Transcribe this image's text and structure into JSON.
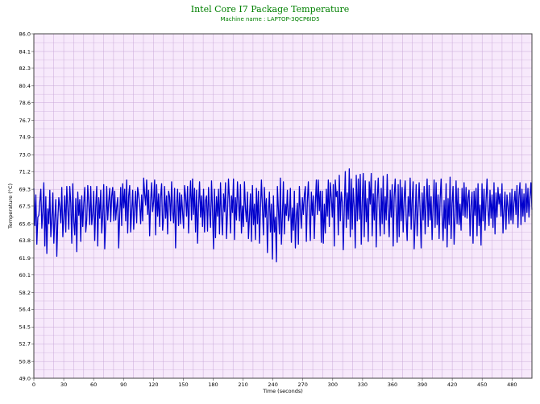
{
  "chart_data": {
    "type": "line",
    "title": "Intel Core I7 Package Temperature",
    "subtitle": "Machine name : LAPTOP-3QCP6ID5",
    "xlabel": "Time (seconds)",
    "ylabel": "Temperature (°C)",
    "xlim": [
      0,
      500
    ],
    "ylim": [
      49.0,
      86.0
    ],
    "x_ticks": [
      0,
      30,
      60,
      90,
      120,
      150,
      180,
      210,
      240,
      270,
      300,
      330,
      360,
      390,
      420,
      450,
      480
    ],
    "y_ticks": [
      "49.0",
      "50.8",
      "52.7",
      "54.5",
      "56.4",
      "58.2",
      "60.1",
      "61.9",
      "63.8",
      "65.6",
      "67.5",
      "69.3",
      "71.2",
      "73.0",
      "74.9",
      "76.7",
      "78.6",
      "80.4",
      "82.3",
      "84.1",
      "86.0"
    ],
    "grid": true,
    "colors": {
      "line": "#0000cc",
      "plot_background": "#f7e9fb",
      "grid": "#c8a8d8",
      "title": "#008000"
    },
    "series": [
      {
        "values": [
          69.4,
          65.4,
          68.7,
          63.4,
          66.3,
          66.5,
          68.0,
          69.3,
          65.1,
          67.0,
          70.0,
          63.2,
          68.5,
          62.4,
          67.2,
          65.6,
          69.2,
          64.2,
          66.0,
          68.9,
          63.5,
          66.2,
          68.2,
          62.1,
          66.0,
          68.4,
          67.4,
          65.7,
          69.5,
          64.2,
          66.3,
          68.6,
          64.7,
          69.6,
          67.2,
          65.0,
          69.6,
          67.8,
          63.5,
          69.9,
          65.8,
          64.4,
          68.3,
          62.6,
          69.0,
          66.5,
          68.2,
          63.7,
          68.6,
          65.3,
          67.8,
          69.5,
          64.7,
          66.0,
          69.7,
          67.7,
          65.5,
          69.6,
          65.5,
          66.7,
          69.1,
          63.8,
          67.5,
          69.6,
          63.2,
          68.4,
          66.2,
          69.2,
          64.6,
          66.5,
          69.8,
          62.9,
          65.8,
          69.6,
          66.0,
          68.0,
          69.4,
          65.8,
          68.6,
          69.5,
          65.9,
          69.1,
          66.0,
          67.4,
          68.4,
          63.0,
          66.5,
          69.5,
          65.4,
          69.9,
          67.3,
          69.3,
          65.9,
          70.3,
          64.6,
          68.6,
          69.7,
          64.7,
          67.0,
          69.2,
          65.0,
          67.4,
          69.1,
          65.7,
          69.5,
          68.7,
          67.7,
          65.6,
          68.7,
          65.9,
          70.5,
          68.8,
          67.6,
          70.3,
          66.6,
          69.2,
          64.3,
          68.0,
          70.0,
          66.9,
          68.0,
          70.3,
          64.4,
          69.8,
          66.4,
          68.8,
          65.3,
          68.5,
          69.9,
          64.9,
          66.2,
          69.6,
          66.2,
          68.6,
          64.5,
          69.1,
          68.5,
          65.9,
          70.1,
          66.9,
          65.7,
          69.4,
          63.0,
          67.7,
          69.3,
          65.4,
          68.9,
          65.6,
          68.7,
          66.9,
          65.1,
          69.7,
          68.5,
          66.4,
          69.6,
          64.6,
          67.9,
          70.2,
          66.0,
          70.4,
          66.6,
          69.4,
          64.7,
          69.2,
          63.5,
          67.5,
          70.1,
          66.3,
          68.6,
          65.3,
          69.3,
          64.7,
          68.1,
          68.6,
          64.8,
          69.5,
          66.9,
          65.2,
          70.2,
          67.0,
          62.9,
          69.3,
          64.1,
          68.5,
          66.4,
          69.3,
          64.5,
          70.0,
          66.6,
          64.4,
          68.8,
          66.9,
          70.0,
          64.0,
          66.8,
          70.4,
          68.1,
          64.6,
          68.6,
          66.8,
          70.4,
          63.9,
          68.4,
          66.0,
          70.1,
          67.8,
          65.9,
          69.8,
          64.6,
          67.5,
          65.3,
          70.1,
          67.2,
          65.8,
          69.0,
          64.0,
          66.4,
          68.8,
          63.7,
          69.7,
          65.5,
          67.7,
          63.9,
          69.4,
          65.6,
          69.1,
          63.5,
          67.1,
          70.3,
          67.4,
          64.4,
          69.5,
          66.3,
          68.3,
          62.5,
          66.8,
          69.0,
          64.7,
          67.7,
          61.8,
          68.6,
          64.7,
          66.3,
          61.5,
          69.6,
          67.1,
          64.5,
          70.5,
          63.4,
          66.4,
          70.1,
          64.5,
          67.7,
          66.5,
          69.2,
          65.9,
          66.5,
          69.4,
          63.6,
          67.3,
          64.9,
          69.1,
          63.0,
          66.5,
          67.8,
          63.4,
          69.6,
          67.0,
          65.1,
          68.4,
          66.6,
          68.7,
          69.6,
          63.7,
          68.0,
          70.1,
          66.9,
          63.8,
          69.0,
          66.5,
          68.6,
          64.0,
          67.7,
          70.3,
          66.6,
          70.3,
          67.0,
          69.1,
          63.6,
          69.1,
          63.5,
          67.7,
          64.6,
          69.3,
          66.4,
          70.3,
          65.3,
          70.0,
          68.4,
          66.3,
          69.8,
          63.2,
          70.3,
          68.5,
          69.1,
          64.4,
          70.8,
          65.9,
          69.0,
          67.9,
          62.8,
          67.3,
          71.2,
          65.2,
          68.9,
          66.1,
          71.5,
          64.2,
          70.4,
          65.0,
          69.4,
          67.5,
          63.0,
          70.8,
          65.9,
          70.4,
          66.1,
          70.9,
          63.4,
          68.1,
          71.0,
          64.2,
          70.2,
          65.8,
          68.3,
          63.7,
          70.1,
          67.7,
          71.0,
          64.3,
          68.8,
          66.0,
          70.2,
          63.1,
          68.1,
          70.5,
          67.2,
          64.3,
          69.4,
          65.6,
          70.7,
          64.5,
          68.5,
          66.0,
          70.9,
          66.8,
          64.2,
          69.2,
          66.3,
          69.8,
          63.2,
          68.5,
          70.4,
          66.9,
          63.6,
          69.8,
          64.2,
          70.3,
          65.9,
          69.5,
          64.7,
          68.3,
          70.2,
          66.3,
          63.8,
          68.5,
          66.4,
          70.5,
          65.0,
          68.2,
          70.1,
          62.9,
          66.2,
          69.8,
          64.3,
          67.3,
          70.0,
          66.9,
          63.0,
          68.9,
          66.0,
          69.6,
          64.5,
          67.9,
          70.4,
          65.3,
          69.7,
          66.0,
          68.5,
          63.9,
          67.5,
          70.3,
          65.2,
          70.0,
          65.5,
          68.7,
          64.0,
          68.2,
          70.4,
          66.4,
          63.8,
          68.1,
          65.1,
          69.9,
          63.1,
          68.3,
          65.5,
          70.6,
          64.0,
          67.8,
          69.6,
          63.4,
          66.4,
          70.2,
          65.6,
          69.4,
          65.5,
          67.7,
          64.9,
          69.4,
          66.5,
          70.0,
          66.3,
          69.5,
          66.2,
          68.4,
          69.2,
          64.3,
          67.6,
          69.0,
          63.5,
          69.1,
          66.5,
          69.4,
          64.3,
          69.9,
          65.4,
          67.6,
          63.3,
          69.9,
          65.9,
          69.3,
          64.9,
          68.0,
          70.4,
          67.0,
          65.4,
          69.2,
          66.2,
          68.7,
          65.2,
          70.0,
          64.5,
          68.9,
          66.3,
          69.5,
          67.7,
          68.8,
          66.4,
          69.9,
          64.6,
          67.1,
          69.0,
          65.0,
          68.7,
          67.4,
          65.6,
          68.9,
          66.0,
          69.3,
          65.6,
          67.8,
          69.1,
          66.6,
          69.7,
          65.2,
          68.6,
          70.0,
          65.5,
          69.3,
          66.4,
          68.8,
          65.8,
          69.9,
          66.8,
          69.4,
          66.3,
          68.5,
          70.0,
          67.1
        ]
      }
    ]
  }
}
